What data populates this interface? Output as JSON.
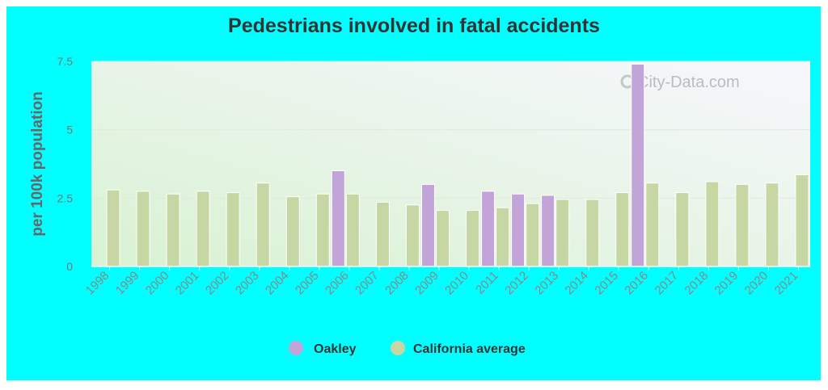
{
  "title": "Pedestrians involved in fatal accidents",
  "watermark": "City-Data.com",
  "colors": {
    "background": "#00ffff",
    "oakley": "#c3a4d9",
    "california": "#c6d7a4"
  },
  "chart_data": {
    "type": "bar",
    "title": "Pedestrians involved in fatal accidents",
    "xlabel": "",
    "ylabel": "per 100k population",
    "ylim": [
      0,
      7.5
    ],
    "yticks": [
      0,
      2.5,
      5,
      7.5
    ],
    "ytick_labels": [
      "0",
      "2.5",
      "5",
      "7.5"
    ],
    "grid": true,
    "legend_position": "bottom",
    "categories": [
      "1998",
      "1999",
      "2000",
      "2001",
      "2002",
      "2003",
      "2004",
      "2005",
      "2006",
      "2007",
      "2008",
      "2009",
      "2010",
      "2011",
      "2012",
      "2013",
      "2014",
      "2015",
      "2016",
      "2017",
      "2018",
      "2019",
      "2020",
      "2021"
    ],
    "series": [
      {
        "name": "Oakley",
        "values": [
          null,
          null,
          null,
          null,
          null,
          null,
          null,
          null,
          3.5,
          null,
          null,
          3.0,
          null,
          2.75,
          2.65,
          2.6,
          null,
          null,
          7.4,
          null,
          null,
          null,
          null,
          null
        ]
      },
      {
        "name": "California average",
        "values": [
          2.8,
          2.75,
          2.65,
          2.75,
          2.7,
          3.05,
          2.55,
          2.65,
          2.65,
          2.35,
          2.25,
          2.05,
          2.05,
          2.15,
          2.3,
          2.45,
          2.45,
          2.7,
          3.05,
          2.7,
          3.1,
          3.0,
          3.05,
          3.35
        ]
      }
    ]
  }
}
